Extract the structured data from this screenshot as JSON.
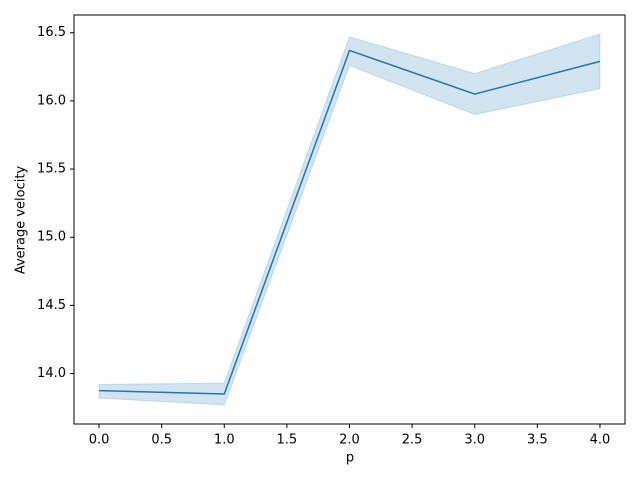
{
  "chart_data": {
    "type": "line",
    "x": [
      0,
      1,
      2,
      3,
      4
    ],
    "series": [
      {
        "color": "#1f77b4",
        "values": [
          13.875,
          13.85,
          16.37,
          16.05,
          16.29
        ],
        "ci_lower": [
          13.82,
          13.77,
          16.26,
          15.9,
          16.09
        ],
        "ci_upper": [
          13.92,
          13.93,
          16.47,
          16.2,
          16.49
        ],
        "band_color": "#1f77b4"
      }
    ],
    "xlabel": "p",
    "ylabel": "Average velocity",
    "xlim": [
      -0.2,
      4.2
    ],
    "xticks": [
      {
        "value": 0,
        "label": "0.0"
      },
      {
        "value": 0.5,
        "label": "0.5"
      },
      {
        "value": 1,
        "label": "1.0"
      },
      {
        "value": 1.5,
        "label": "1.5"
      },
      {
        "value": 2,
        "label": "2.0"
      },
      {
        "value": 2.5,
        "label": "2.5"
      },
      {
        "value": 3,
        "label": "3.0"
      },
      {
        "value": 3.5,
        "label": "3.5"
      },
      {
        "value": 4,
        "label": "4.0"
      }
    ],
    "ylim": [
      13.63,
      16.63
    ],
    "yticks": [
      {
        "value": 14,
        "label": "14.0"
      },
      14.5,
      {
        "value": 15,
        "label": "15.0"
      },
      15.5,
      {
        "value": 16,
        "label": "16.0"
      },
      16.5
    ],
    "grid": false
  }
}
